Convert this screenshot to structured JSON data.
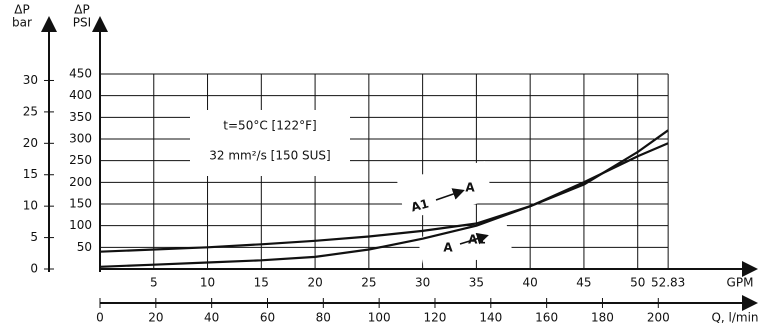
{
  "chart_data": {
    "type": "line",
    "ylabel": [
      "ΔP",
      "PSI"
    ],
    "y2label": [
      "ΔP",
      "bar"
    ],
    "xlabel": "GPM",
    "x2label": "Q, l/min",
    "x": [
      0,
      5,
      10,
      15,
      20,
      25,
      30,
      35,
      40,
      45,
      50,
      52.83
    ],
    "series": [
      {
        "color": "#111111",
        "values": [
          40,
          45,
          50,
          57,
          65,
          75,
          88,
          105,
          145,
          195,
          270,
          320
        ]
      },
      {
        "color": "#111111",
        "values": [
          5,
          10,
          15,
          20,
          28,
          45,
          70,
          100,
          145,
          200,
          260,
          290
        ]
      }
    ],
    "xlim": [
      0,
      61
    ],
    "xticks": [
      5,
      10,
      15,
      20,
      25,
      30,
      35,
      40,
      45,
      50,
      52.83
    ],
    "x2lim": [
      0,
      235
    ],
    "x2ticks": [
      0,
      20,
      40,
      60,
      80,
      100,
      120,
      140,
      160,
      180,
      200
    ],
    "ylim": [
      0,
      480
    ],
    "yticks": [
      50,
      100,
      150,
      200,
      250,
      300,
      350,
      400,
      450
    ],
    "y2lim": [
      0,
      33.1
    ],
    "y2ticks": [
      0,
      5,
      10,
      15,
      20,
      25,
      30
    ],
    "grid": true,
    "annotations": [
      "t=50°C [122°F]",
      "32 mm²/s [150 SUS]",
      "A1",
      "A",
      "A",
      "A1"
    ]
  }
}
